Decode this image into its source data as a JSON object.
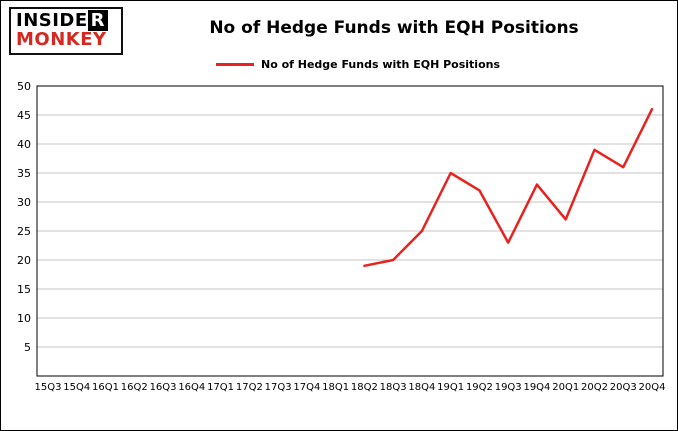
{
  "logo": {
    "insider_part1": "INSIDE",
    "insider_part2": "R",
    "monkey": "MONKEY",
    "monkey_color": "#d6281f"
  },
  "header": {
    "title": "No of Hedge Funds with EQH Positions"
  },
  "legend": {
    "label": "No of Hedge Funds with EQH Positions"
  },
  "chart_data": {
    "type": "line",
    "title": "No of Hedge Funds with EQH Positions",
    "categories": [
      "15Q3",
      "15Q4",
      "16Q1",
      "16Q2",
      "16Q3",
      "16Q4",
      "17Q1",
      "17Q2",
      "17Q3",
      "17Q4",
      "18Q1",
      "18Q2",
      "18Q3",
      "18Q4",
      "19Q1",
      "19Q2",
      "19Q3",
      "19Q4",
      "20Q1",
      "20Q2",
      "20Q3",
      "20Q4"
    ],
    "series": [
      {
        "name": "No of Hedge Funds with EQH Positions",
        "color": "#e8231f",
        "values": [
          null,
          null,
          null,
          null,
          null,
          null,
          null,
          null,
          null,
          null,
          null,
          19,
          20,
          25,
          35,
          32,
          23,
          33,
          27,
          39,
          36,
          46
        ]
      }
    ],
    "xlabel": "",
    "ylabel": "",
    "ylim": [
      0,
      50
    ],
    "ytick_step": 5,
    "grid": true,
    "grid_color": "#c6c6c6",
    "legend_position": "top"
  }
}
